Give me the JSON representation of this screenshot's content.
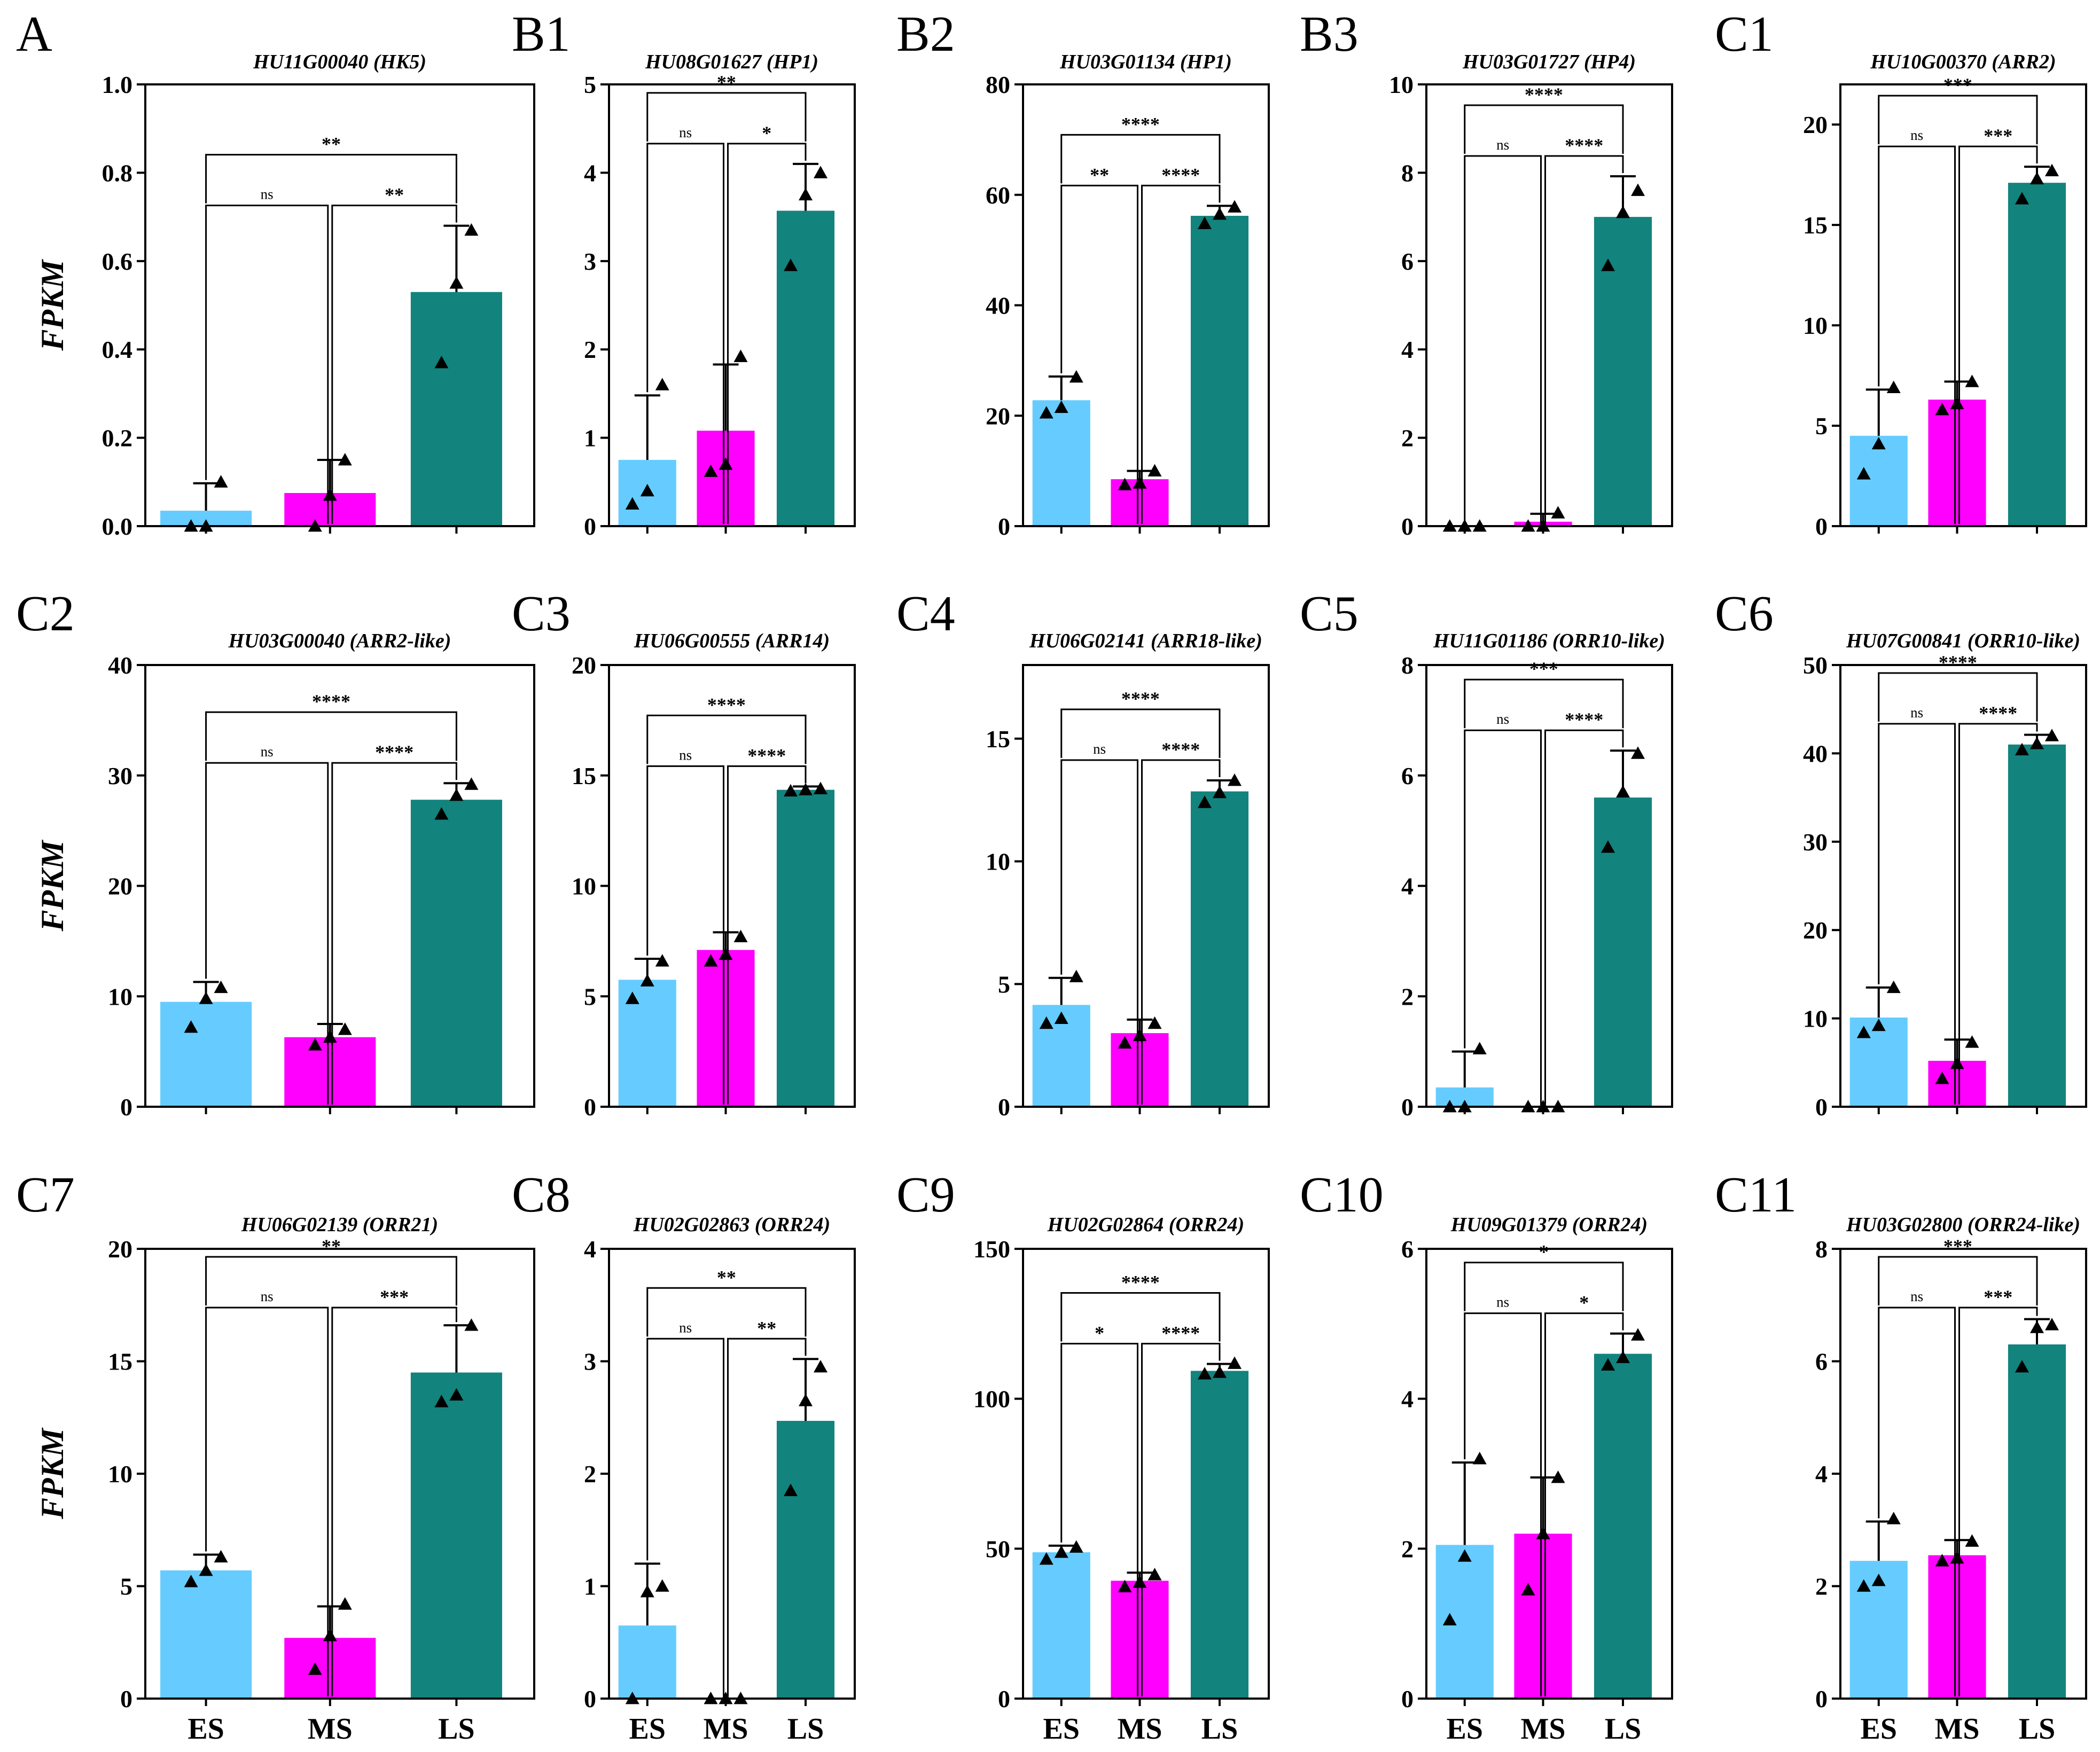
{
  "figure": {
    "ylabel": "FPKM",
    "groups": [
      "ES",
      "MS",
      "LS"
    ],
    "colors": {
      "ES": "#66ccff",
      "MS": "#ff00ff",
      "LS": "#12837d"
    }
  },
  "chart_data": [
    {
      "letter": "A",
      "title": "HU11G00040 (HK5)",
      "type": "bar",
      "categories": [
        "ES",
        "MS",
        "LS"
      ],
      "values": [
        0.035,
        0.075,
        0.53
      ],
      "errors": [
        0.062,
        0.075,
        0.15
      ],
      "points": [
        [
          0.0,
          0.0,
          0.1
        ],
        [
          0.0,
          0.07,
          0.15
        ],
        [
          0.37,
          0.55,
          0.67
        ]
      ],
      "ylim": [
        0,
        1.0
      ],
      "yticks": [
        0.0,
        0.2,
        0.4,
        0.6,
        0.8,
        1.0
      ],
      "ytick_labels": [
        "0.0",
        "0.2",
        "0.4",
        "0.6",
        "0.8",
        "1.0"
      ],
      "comparisons": [
        {
          "pair": "ES-MS",
          "label": "ns"
        },
        {
          "pair": "MS-LS",
          "label": "**"
        },
        {
          "pair": "ES-LS",
          "label": "**"
        }
      ]
    },
    {
      "letter": "B1",
      "title": "HU08G01627 (HP1)",
      "type": "bar",
      "categories": [
        "ES",
        "MS",
        "LS"
      ],
      "values": [
        0.75,
        1.08,
        3.57
      ],
      "errors": [
        0.73,
        0.75,
        0.53
      ],
      "points": [
        [
          0.25,
          0.4,
          1.6
        ],
        [
          0.62,
          0.7,
          1.92
        ],
        [
          2.95,
          3.75,
          4.0
        ]
      ],
      "ylim": [
        0,
        5
      ],
      "yticks": [
        0,
        1,
        2,
        3,
        4,
        5
      ],
      "ytick_labels": [
        "0",
        "1",
        "2",
        "3",
        "4",
        "5"
      ],
      "comparisons": [
        {
          "pair": "ES-MS",
          "label": "ns"
        },
        {
          "pair": "MS-LS",
          "label": "*"
        },
        {
          "pair": "ES-LS",
          "label": "**"
        }
      ]
    },
    {
      "letter": "B2",
      "title": "HU03G01134 (HP1)",
      "type": "bar",
      "categories": [
        "ES",
        "MS",
        "LS"
      ],
      "values": [
        22.8,
        8.5,
        56.2
      ],
      "errors": [
        4.3,
        1.5,
        1.8
      ],
      "points": [
        [
          20.5,
          21.5,
          27
        ],
        [
          7.5,
          7.8,
          10
        ],
        [
          54.8,
          56.5,
          57.8
        ]
      ],
      "ylim": [
        0,
        80
      ],
      "yticks": [
        0,
        20,
        40,
        60,
        80
      ],
      "ytick_labels": [
        "0",
        "20",
        "40",
        "60",
        "80"
      ],
      "comparisons": [
        {
          "pair": "ES-MS",
          "label": "**"
        },
        {
          "pair": "MS-LS",
          "label": "****"
        },
        {
          "pair": "ES-LS",
          "label": "****"
        }
      ]
    },
    {
      "letter": "B3",
      "title": "HU03G01727 (HP4)",
      "type": "bar",
      "categories": [
        "ES",
        "MS",
        "LS"
      ],
      "values": [
        0.0,
        0.1,
        7.0
      ],
      "errors": [
        0.0,
        0.18,
        0.92
      ],
      "points": [
        [
          0,
          0,
          0
        ],
        [
          0,
          0,
          0.3
        ],
        [
          5.9,
          7.1,
          7.6
        ]
      ],
      "ylim": [
        0,
        10
      ],
      "yticks": [
        0,
        2,
        4,
        6,
        8,
        10
      ],
      "ytick_labels": [
        "0",
        "2",
        "4",
        "6",
        "8",
        "10"
      ],
      "comparisons": [
        {
          "pair": "ES-MS",
          "label": "ns"
        },
        {
          "pair": "MS-LS",
          "label": "****"
        },
        {
          "pair": "ES-LS",
          "label": "****"
        }
      ]
    },
    {
      "letter": "C1",
      "title": "HU10G00370 (ARR2)",
      "type": "bar",
      "categories": [
        "ES",
        "MS",
        "LS"
      ],
      "values": [
        4.5,
        6.3,
        17.1
      ],
      "errors": [
        2.3,
        0.9,
        0.8
      ],
      "points": [
        [
          2.6,
          4.1,
          6.9
        ],
        [
          5.8,
          6.1,
          7.2
        ],
        [
          16.3,
          17.3,
          17.7
        ]
      ],
      "ylim": [
        0,
        22
      ],
      "yticks": [
        0,
        5,
        10,
        15,
        20
      ],
      "ytick_labels": [
        "0",
        "5",
        "10",
        "15",
        "20"
      ],
      "comparisons": [
        {
          "pair": "ES-MS",
          "label": "ns"
        },
        {
          "pair": "MS-LS",
          "label": "***"
        },
        {
          "pair": "ES-LS",
          "label": "***"
        }
      ]
    },
    {
      "letter": "C2",
      "title": "HU03G00040 (ARR2-like)",
      "type": "bar",
      "categories": [
        "ES",
        "MS",
        "LS"
      ],
      "values": [
        9.5,
        6.3,
        27.8
      ],
      "errors": [
        1.8,
        1.2,
        1.5
      ],
      "points": [
        [
          7.2,
          9.8,
          10.8
        ],
        [
          5.6,
          6.3,
          7.0
        ],
        [
          26.5,
          28.2,
          29.2
        ]
      ],
      "ylim": [
        0,
        40
      ],
      "yticks": [
        0,
        10,
        20,
        30,
        40
      ],
      "ytick_labels": [
        "0",
        "10",
        "20",
        "30",
        "40"
      ],
      "comparisons": [
        {
          "pair": "ES-MS",
          "label": "ns"
        },
        {
          "pair": "MS-LS",
          "label": "****"
        },
        {
          "pair": "ES-LS",
          "label": "****"
        }
      ]
    },
    {
      "letter": "C3",
      "title": "HU06G00555 (ARR14)",
      "type": "bar",
      "categories": [
        "ES",
        "MS",
        "LS"
      ],
      "values": [
        5.75,
        7.1,
        14.35
      ],
      "errors": [
        0.95,
        0.8,
        0.15
      ],
      "points": [
        [
          4.9,
          5.7,
          6.6
        ],
        [
          6.6,
          6.9,
          7.7
        ],
        [
          14.3,
          14.35,
          14.4
        ]
      ],
      "ylim": [
        0,
        20
      ],
      "yticks": [
        0,
        5,
        10,
        15,
        20
      ],
      "ytick_labels": [
        "0",
        "5",
        "10",
        "15",
        "20"
      ],
      "comparisons": [
        {
          "pair": "ES-MS",
          "label": "ns"
        },
        {
          "pair": "MS-LS",
          "label": "****"
        },
        {
          "pair": "ES-LS",
          "label": "****"
        }
      ]
    },
    {
      "letter": "C4",
      "title": "HU06G02141 (ARR18-like)",
      "type": "bar",
      "categories": [
        "ES",
        "MS",
        "LS"
      ],
      "values": [
        4.15,
        3.0,
        12.85
      ],
      "errors": [
        1.1,
        0.55,
        0.45
      ],
      "points": [
        [
          3.4,
          3.6,
          5.3
        ],
        [
          2.6,
          2.9,
          3.4
        ],
        [
          12.4,
          12.8,
          13.3
        ]
      ],
      "ylim": [
        0,
        18
      ],
      "yticks": [
        0,
        5,
        10,
        15
      ],
      "ytick_labels": [
        "0",
        "5",
        "10",
        "15"
      ],
      "comparisons": [
        {
          "pair": "ES-MS",
          "label": "ns"
        },
        {
          "pair": "MS-LS",
          "label": "****"
        },
        {
          "pair": "ES-LS",
          "label": "****"
        }
      ]
    },
    {
      "letter": "C5",
      "title": "HU11G01186 (ORR10-like)",
      "type": "bar",
      "categories": [
        "ES",
        "MS",
        "LS"
      ],
      "values": [
        0.35,
        0.0,
        5.6
      ],
      "errors": [
        0.65,
        0.0,
        0.85
      ],
      "points": [
        [
          0,
          0,
          1.05
        ],
        [
          0,
          0,
          0
        ],
        [
          4.7,
          5.7,
          6.4
        ]
      ],
      "ylim": [
        0,
        8
      ],
      "yticks": [
        0,
        2,
        4,
        6,
        8
      ],
      "ytick_labels": [
        "0",
        "2",
        "4",
        "6",
        "8"
      ],
      "comparisons": [
        {
          "pair": "ES-MS",
          "label": "ns"
        },
        {
          "pair": "MS-LS",
          "label": "****"
        },
        {
          "pair": "ES-LS",
          "label": "***"
        }
      ]
    },
    {
      "letter": "C6",
      "title": "HU07G00841 (ORR10-like)",
      "type": "bar",
      "categories": [
        "ES",
        "MS",
        "LS"
      ],
      "values": [
        10.1,
        5.2,
        41.0
      ],
      "errors": [
        3.4,
        2.4,
        1.1
      ],
      "points": [
        [
          8.4,
          9.2,
          13.5
        ],
        [
          3.2,
          4.9,
          7.3
        ],
        [
          40.4,
          41.1,
          42.0
        ]
      ],
      "ylim": [
        0,
        50
      ],
      "yticks": [
        0,
        10,
        20,
        30,
        40,
        50
      ],
      "ytick_labels": [
        "0",
        "10",
        "20",
        "30",
        "40",
        "50"
      ],
      "comparisons": [
        {
          "pair": "ES-MS",
          "label": "ns"
        },
        {
          "pair": "MS-LS",
          "label": "****"
        },
        {
          "pair": "ES-LS",
          "label": "****"
        }
      ]
    },
    {
      "letter": "C7",
      "title": "HU06G02139 (ORR21)",
      "type": "bar",
      "categories": [
        "ES",
        "MS",
        "LS"
      ],
      "values": [
        5.7,
        2.7,
        14.5
      ],
      "errors": [
        0.7,
        1.4,
        2.1
      ],
      "points": [
        [
          5.2,
          5.7,
          6.3
        ],
        [
          1.3,
          2.8,
          4.2
        ],
        [
          13.2,
          13.5,
          16.6
        ]
      ],
      "ylim": [
        0,
        20
      ],
      "yticks": [
        0,
        5,
        10,
        15,
        20
      ],
      "ytick_labels": [
        "0",
        "5",
        "10",
        "15",
        "20"
      ],
      "comparisons": [
        {
          "pair": "ES-MS",
          "label": "ns"
        },
        {
          "pair": "MS-LS",
          "label": "***"
        },
        {
          "pair": "ES-LS",
          "label": "**"
        }
      ]
    },
    {
      "letter": "C8",
      "title": "HU02G02863 (ORR24)",
      "type": "bar",
      "categories": [
        "ES",
        "MS",
        "LS"
      ],
      "values": [
        0.65,
        0.0,
        2.47
      ],
      "errors": [
        0.55,
        0.0,
        0.55
      ],
      "points": [
        [
          0.0,
          0.95,
          1.0
        ],
        [
          0,
          0,
          0
        ],
        [
          1.85,
          2.65,
          2.95
        ]
      ],
      "ylim": [
        0,
        4
      ],
      "yticks": [
        0,
        1,
        2,
        3,
        4
      ],
      "ytick_labels": [
        "0",
        "1",
        "2",
        "3",
        "4"
      ],
      "comparisons": [
        {
          "pair": "ES-MS",
          "label": "ns"
        },
        {
          "pair": "MS-LS",
          "label": "**"
        },
        {
          "pair": "ES-LS",
          "label": "**"
        }
      ]
    },
    {
      "letter": "C9",
      "title": "HU02G02864 (ORR24)",
      "type": "bar",
      "categories": [
        "ES",
        "MS",
        "LS"
      ],
      "values": [
        48.8,
        39.3,
        109.3
      ],
      "errors": [
        2.2,
        2.7,
        2.3
      ],
      "points": [
        [
          46.5,
          48.8,
          50.5
        ],
        [
          37.3,
          38.8,
          41.3
        ],
        [
          108.3,
          108.8,
          111.8
        ]
      ],
      "ylim": [
        0,
        150
      ],
      "yticks": [
        0,
        50,
        100,
        150
      ],
      "ytick_labels": [
        "0",
        "50",
        "100",
        "150"
      ],
      "comparisons": [
        {
          "pair": "ES-MS",
          "label": "*"
        },
        {
          "pair": "MS-LS",
          "label": "****"
        },
        {
          "pair": "ES-LS",
          "label": "****"
        }
      ]
    },
    {
      "letter": "C10",
      "title": "HU09G01379 (ORR24)",
      "type": "bar",
      "categories": [
        "ES",
        "MS",
        "LS"
      ],
      "values": [
        2.05,
        2.2,
        4.6
      ],
      "errors": [
        1.1,
        0.75,
        0.27
      ],
      "points": [
        [
          1.05,
          1.9,
          3.2
        ],
        [
          1.45,
          2.2,
          2.95
        ],
        [
          4.45,
          4.55,
          4.85
        ]
      ],
      "ylim": [
        0,
        6
      ],
      "yticks": [
        0,
        2,
        4,
        6
      ],
      "ytick_labels": [
        "0",
        "2",
        "4",
        "6"
      ],
      "comparisons": [
        {
          "pair": "ES-MS",
          "label": "ns"
        },
        {
          "pair": "MS-LS",
          "label": "*"
        },
        {
          "pair": "ES-LS",
          "label": "*"
        }
      ]
    },
    {
      "letter": "C11",
      "title": "HU03G02800 (ORR24-like)",
      "type": "bar",
      "categories": [
        "ES",
        "MS",
        "LS"
      ],
      "values": [
        2.45,
        2.55,
        6.3
      ],
      "errors": [
        0.7,
        0.27,
        0.45
      ],
      "points": [
        [
          2.0,
          2.1,
          3.2
        ],
        [
          2.45,
          2.5,
          2.8
        ],
        [
          5.9,
          6.6,
          6.65
        ]
      ],
      "ylim": [
        0,
        8
      ],
      "yticks": [
        0,
        2,
        4,
        6,
        8
      ],
      "ytick_labels": [
        "0",
        "2",
        "4",
        "6",
        "8"
      ],
      "comparisons": [
        {
          "pair": "ES-MS",
          "label": "ns"
        },
        {
          "pair": "MS-LS",
          "label": "***"
        },
        {
          "pair": "ES-LS",
          "label": "***"
        }
      ]
    }
  ]
}
